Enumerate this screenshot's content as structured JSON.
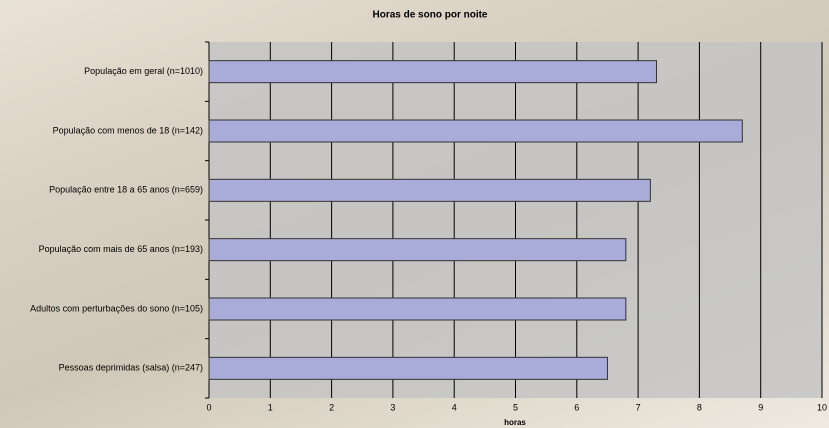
{
  "chart_data": {
    "type": "bar",
    "orientation": "horizontal",
    "title": "Horas de sono por noite",
    "x_label": "horas",
    "categories": [
      "População em geral (n=1010)",
      "População com menos de 18 (n=142)",
      "População entre 18 a 65 anos (n=659)",
      "População com mais de 65 anos (n=193)",
      "Adultos com perturbações do sono (n=105)",
      "Pessoas deprimidas (salsa) (n=247)"
    ],
    "values": [
      7.3,
      8.7,
      7.2,
      6.8,
      6.8,
      6.5
    ],
    "color": "#a9abd8",
    "xlim": [
      0,
      10
    ],
    "xticks": [
      0,
      1,
      2,
      3,
      4,
      5,
      6,
      7,
      8,
      9,
      10
    ],
    "grid": true
  }
}
